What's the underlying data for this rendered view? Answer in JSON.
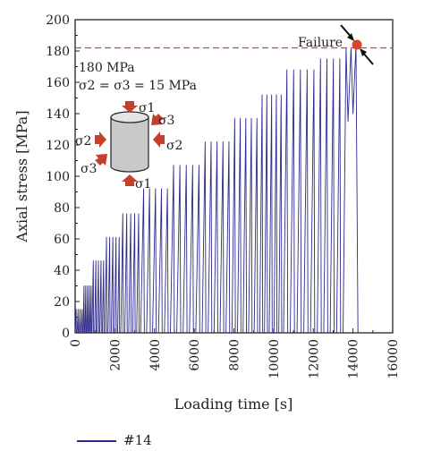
{
  "chart_data": {
    "type": "line",
    "xlabel": "Loading time [s]",
    "ylabel": "Axial stress [MPa]",
    "xlim": [
      0,
      16000
    ],
    "ylim": [
      0,
      200
    ],
    "xticks": [
      "0",
      "2000",
      "4000",
      "6000",
      "8000",
      "10000",
      "12000",
      "14000",
      "16000"
    ],
    "yticks": [
      "0",
      "20",
      "40",
      "60",
      "80",
      "100",
      "120",
      "140",
      "160",
      "180",
      "200"
    ],
    "grid": false,
    "legend_position": "bottom-left",
    "series": [
      {
        "name": "#14",
        "color": "#2e2a8c",
        "cycle_groups": [
          {
            "t_start": 0,
            "t_end": 400,
            "peak": 15,
            "cycles": 4
          },
          {
            "t_start": 400,
            "t_end": 850,
            "peak": 30,
            "cycles": 5
          },
          {
            "t_start": 850,
            "t_end": 1500,
            "peak": 46,
            "cycles": 5
          },
          {
            "t_start": 1500,
            "t_end": 2300,
            "peak": 61,
            "cycles": 5
          },
          {
            "t_start": 2300,
            "t_end": 3300,
            "peak": 76,
            "cycles": 5
          },
          {
            "t_start": 3300,
            "t_end": 4800,
            "peak": 92,
            "cycles": 5
          },
          {
            "t_start": 4800,
            "t_end": 6400,
            "peak": 107,
            "cycles": 5
          },
          {
            "t_start": 6400,
            "t_end": 7900,
            "peak": 122,
            "cycles": 5
          },
          {
            "t_start": 7900,
            "t_end": 9300,
            "peak": 137,
            "cycles": 5
          },
          {
            "t_start": 9300,
            "t_end": 10500,
            "peak": 152,
            "cycles": 5
          },
          {
            "t_start": 10500,
            "t_end": 12200,
            "peak": 168,
            "cycles": 5
          },
          {
            "t_start": 12200,
            "t_end": 13500,
            "peak": 175,
            "cycles": 4
          }
        ],
        "final_ramp": [
          [
            13500,
            0
          ],
          [
            13650,
            182
          ],
          [
            13750,
            135
          ],
          [
            13900,
            182
          ],
          [
            14000,
            140
          ],
          [
            14150,
            184
          ],
          [
            14250,
            0
          ]
        ]
      }
    ],
    "reference_line": {
      "y": 182,
      "color": "#d9432b",
      "style": "dashed"
    },
    "failure_point": {
      "x": 14200,
      "y": 184,
      "label": "Failure",
      "color": "#d9432b"
    },
    "annotations": {
      "confining_line1": "180 MPa",
      "confining_line2": "σ2 = σ3 = 15 MPa",
      "sigma1": "σ1",
      "sigma2": "σ2",
      "sigma3": "σ3"
    }
  },
  "legend": {
    "label": "#14"
  }
}
